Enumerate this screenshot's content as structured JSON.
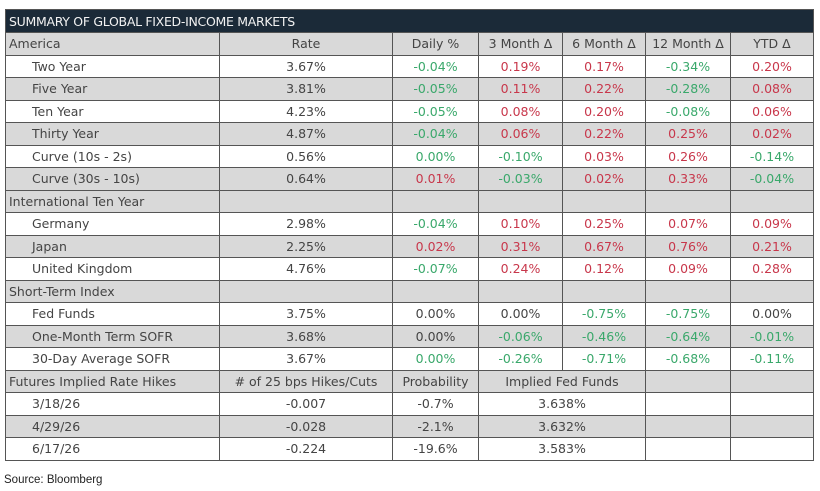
{
  "title": "SUMMARY OF GLOBAL FIXED-INCOME MARKETS",
  "colors": {
    "positive": "#c8374b",
    "negative": "#3aa86b",
    "neutral": "#444444",
    "title_bg": "#1b2a38",
    "shade": "#d9d9d9"
  },
  "sections": [
    {
      "header": [
        "America",
        "Rate",
        "Daily %",
        "3 Month Δ",
        "6 Month Δ",
        "12 Month Δ",
        "YTD Δ"
      ],
      "rows": [
        {
          "cells": [
            "Two Year",
            "3.67%",
            "-0.04%",
            "0.19%",
            "0.17%",
            "-0.34%",
            "0.20%"
          ],
          "colors": "kkgrrgr"
        },
        {
          "cells": [
            "Five Year",
            "3.81%",
            "-0.05%",
            "0.11%",
            "0.22%",
            "-0.28%",
            "0.08%"
          ],
          "colors": "kkgrrgr"
        },
        {
          "cells": [
            "Ten Year",
            "4.23%",
            "-0.05%",
            "0.08%",
            "0.20%",
            "-0.08%",
            "0.06%"
          ],
          "colors": "kkgrrgr"
        },
        {
          "cells": [
            "Thirty Year",
            "4.87%",
            "-0.04%",
            "0.06%",
            "0.22%",
            "0.25%",
            "0.02%"
          ],
          "colors": "kkgrrrr"
        },
        {
          "cells": [
            "Curve (10s - 2s)",
            "0.56%",
            "0.00%",
            "-0.10%",
            "0.03%",
            "0.26%",
            "-0.14%"
          ],
          "colors": "kkggrrg"
        },
        {
          "cells": [
            "Curve (30s - 10s)",
            "0.64%",
            "0.01%",
            "-0.03%",
            "0.02%",
            "0.33%",
            "-0.04%"
          ],
          "colors": "kkrgrrg"
        }
      ]
    },
    {
      "header": [
        "International Ten Year",
        "",
        "",
        "",
        "",
        "",
        ""
      ],
      "rows": [
        {
          "cells": [
            "Germany",
            "2.98%",
            "-0.04%",
            "0.10%",
            "0.25%",
            "0.07%",
            "0.09%"
          ],
          "colors": "kkgrrrr"
        },
        {
          "cells": [
            "Japan",
            "2.25%",
            "0.02%",
            "0.31%",
            "0.67%",
            "0.76%",
            "0.21%"
          ],
          "colors": "kkrrrrr"
        },
        {
          "cells": [
            "United Kingdom",
            "4.76%",
            "-0.07%",
            "0.24%",
            "0.12%",
            "0.09%",
            "0.28%"
          ],
          "colors": "kkgrrrr"
        }
      ]
    },
    {
      "header": [
        "Short-Term Index",
        "",
        "",
        "",
        "",
        "",
        ""
      ],
      "rows": [
        {
          "cells": [
            "Fed Funds",
            "3.75%",
            "0.00%",
            "0.00%",
            "-0.75%",
            "-0.75%",
            "0.00%"
          ],
          "colors": "kkkkggk"
        },
        {
          "cells": [
            "One-Month Term SOFR",
            "3.68%",
            "0.00%",
            "-0.06%",
            "-0.46%",
            "-0.64%",
            "-0.01%"
          ],
          "colors": "kkkgggg"
        },
        {
          "cells": [
            "30-Day Average SOFR",
            "3.67%",
            "0.00%",
            "-0.26%",
            "-0.71%",
            "-0.68%",
            "-0.11%"
          ],
          "colors": "kkggggg"
        }
      ]
    }
  ],
  "futures": {
    "header": [
      "Futures Implied Rate Hikes",
      "# of 25 bps Hikes/Cuts",
      "Probability",
      "Implied Fed Funds",
      "",
      ""
    ],
    "rows": [
      [
        "3/18/26",
        "-0.007",
        "-0.7%",
        "3.638%",
        "",
        ""
      ],
      [
        "4/29/26",
        "-0.028",
        "-2.1%",
        "3.632%",
        "",
        ""
      ],
      [
        "6/17/26",
        "-0.224",
        "-19.6%",
        "3.583%",
        "",
        ""
      ]
    ]
  },
  "source": "Source: Bloomberg"
}
